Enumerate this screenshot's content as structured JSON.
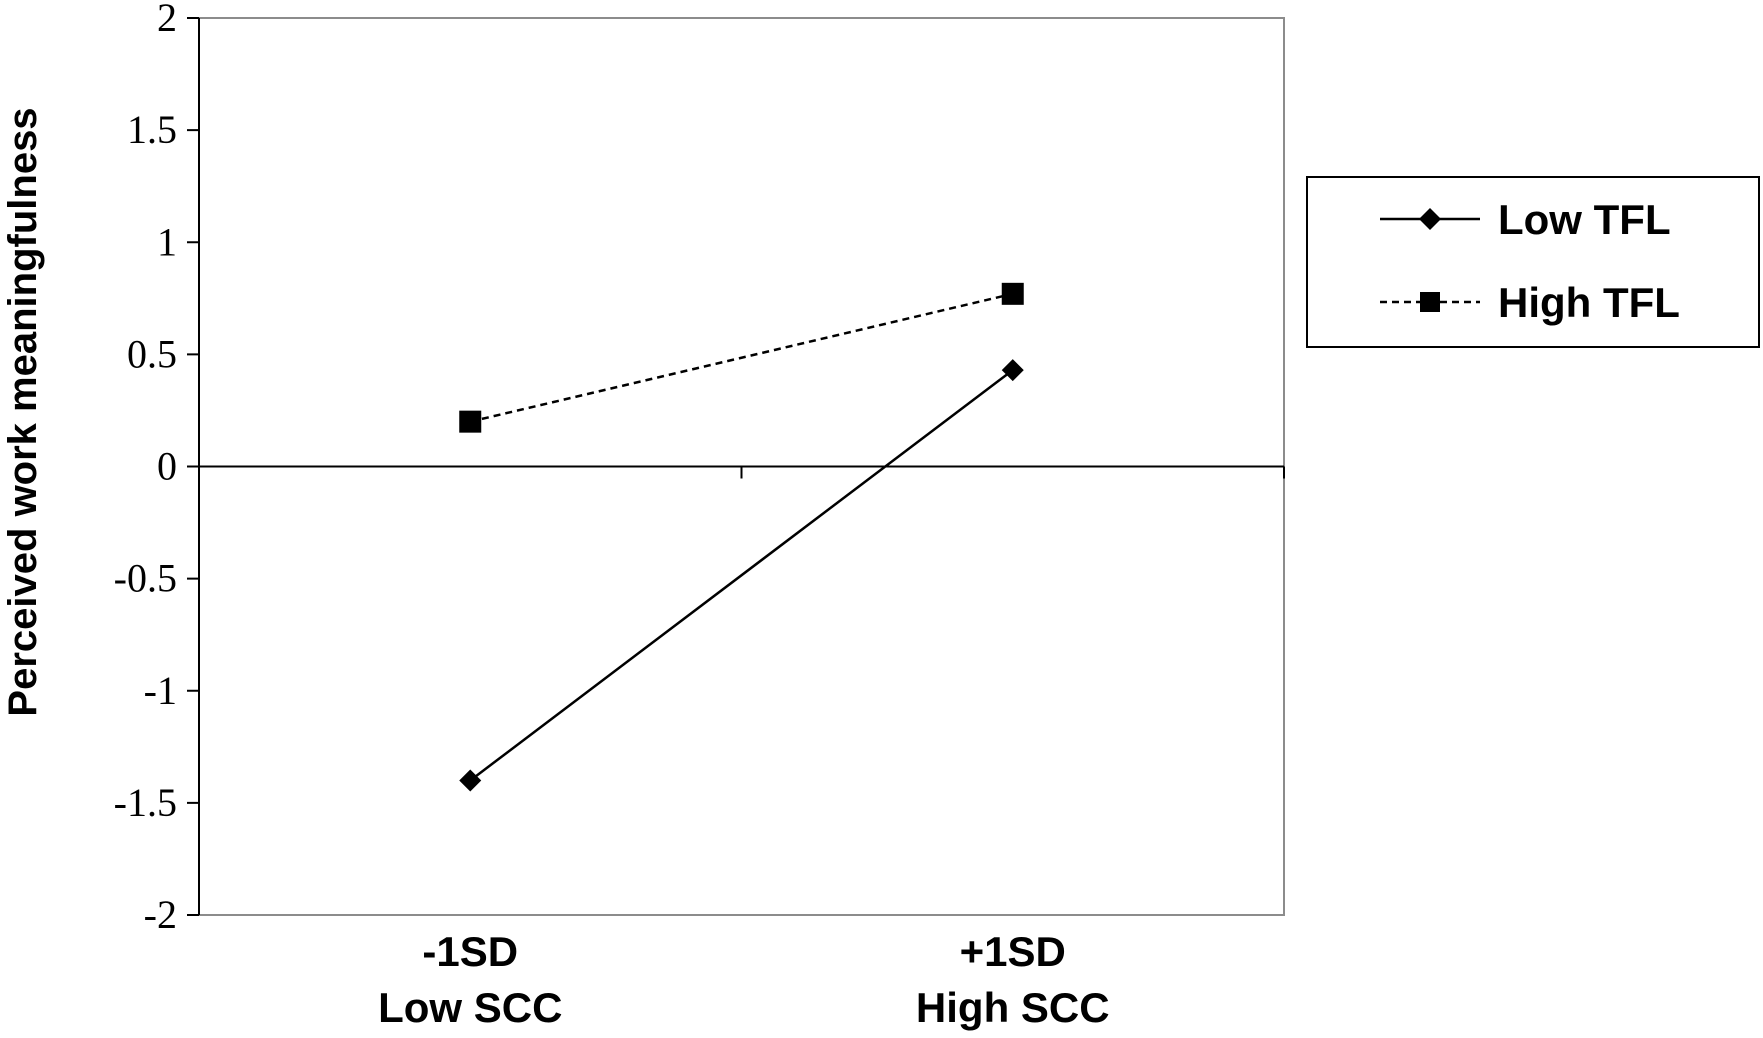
{
  "chart_data": {
    "type": "line",
    "ylabel": "Perceived work meaningfulness",
    "xlabel": "",
    "ylim": [
      -2,
      2
    ],
    "yticks": [
      2,
      1.5,
      1,
      0.5,
      0,
      -0.5,
      -1,
      -1.5,
      -2
    ],
    "ytick_labels": [
      "2",
      "1.5",
      "1",
      "0.5",
      "0",
      "-0.5",
      "-1",
      "-1.5",
      "-2"
    ],
    "categories": [
      {
        "line1": "-1SD",
        "line2": "Low SCC"
      },
      {
        "line1": "+1SD",
        "line2": "High SCC"
      }
    ],
    "series": [
      {
        "name": "Low TFL",
        "values": [
          -1.4,
          0.43
        ],
        "marker": "diamond",
        "line_style": "solid",
        "color": "#000000"
      },
      {
        "name": "High TFL",
        "values": [
          0.2,
          0.77
        ],
        "marker": "square",
        "line_style": "dashed",
        "color": "#000000"
      }
    ],
    "grid": false,
    "legend_position": "right"
  }
}
